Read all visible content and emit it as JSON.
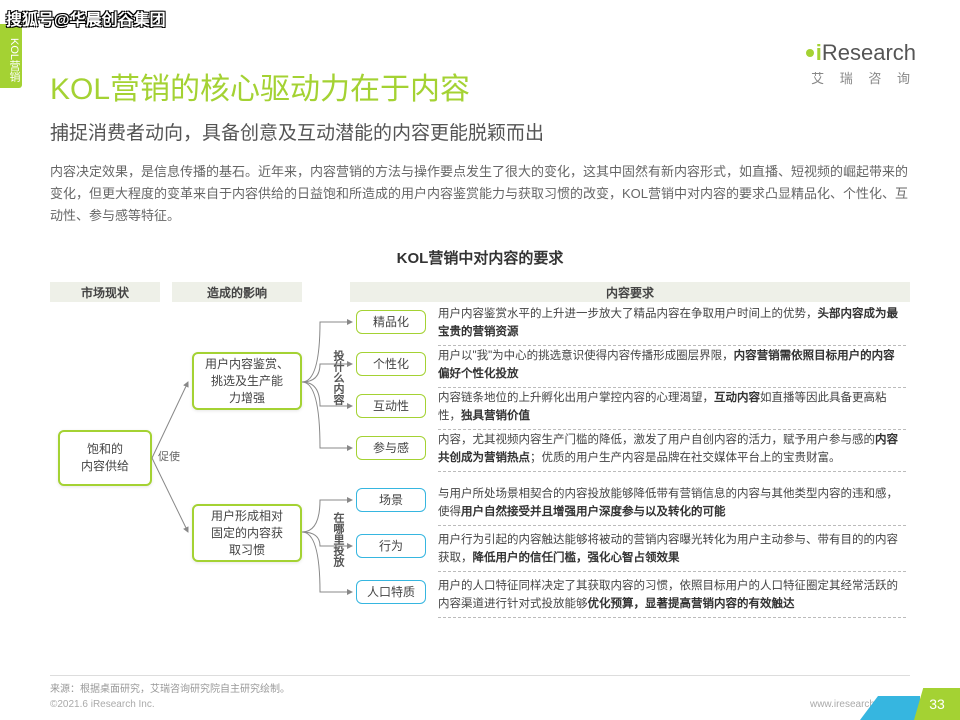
{
  "watermark": "搜狐号@华晨创谷集团",
  "sideTab": "KOL营销",
  "logo": {
    "brand": "Research",
    "sub": "艾 瑞 咨 询"
  },
  "title": "KOL营销的核心驱动力在于内容",
  "subtitle": "捕捉消费者动向，具备创意及互动潜能的内容更能脱颖而出",
  "paragraph": "内容决定效果，是信息传播的基石。近年来，内容营销的方法与操作要点发生了很大的变化，这其中固然有新内容形式，如直播、短视频的崛起带来的变化，但更大程度的变革来自于内容供给的日益饱和所造成的用户内容鉴赏能力与获取习惯的改变，KOL营销中对内容的要求凸显精品化、个性化、互动性、参与感等特征。",
  "sectionTitle": "KOL营销中对内容的要求",
  "headers": {
    "h1": "市场现状",
    "h2": "造成的影响",
    "h3": "内容要求"
  },
  "root": "饱和的\n内容供给",
  "edge1": "促使",
  "mid": {
    "m1": "用户内容鉴赏、\n挑选及生产能\n力增强",
    "m2": "用户形成相对\n固定的内容获\n取习惯"
  },
  "vlabels": {
    "v1": "投什么内容",
    "v2": "在哪里投放"
  },
  "tags": {
    "t1": "精品化",
    "t2": "个性化",
    "t3": "互动性",
    "t4": "参与感",
    "t5": "场景",
    "t6": "行为",
    "t7": "人口特质"
  },
  "desc": {
    "d1": "用户内容鉴赏水平的上升进一步放大了精品内容在争取用户时间上的优势，<b>头部内容成为最宝贵的营销资源</b>",
    "d2": "用户以\"我\"为中心的挑选意识使得内容传播形成圈层界限，<b>内容营销需依照目标用户的内容偏好个性化投放</b>",
    "d3": "内容链条地位的上升孵化出用户掌控内容的心理渴望，<b>互动内容</b>如直播等因此具备更高粘性，<b>独具营销价值</b>",
    "d4": "内容，尤其视频内容生产门槛的降低，激发了用户自创内容的活力，赋予用户参与感的<b>内容共创成为营销热点</b>；优质的用户生产内容是品牌在社交媒体平台上的宝贵财富。",
    "d5": "与用户所处场景相契合的内容投放能够降低带有营销信息的内容与其他类型内容的违和感，使得<b>用户自然接受并且增强用户深度参与以及转化的可能</b>",
    "d6": "用户行为引起的内容触达能够将被动的营销内容曝光转化为用户主动参与、带有目的的内容获取，<b>降低用户的信任门槛，强化心智占领效果</b>",
    "d7": "用户的人口特征同样决定了其获取内容的习惯，依照目标用户的人口特征圈定其经常活跃的内容渠道进行针对式投放能够<b>优化预算，显著提高营销内容的有效触达</b>"
  },
  "source": "来源：根据桌面研究，艾瑞咨询研究院自主研究绘制。",
  "copyright": "©2021.6 iResearch Inc.",
  "url": "www.iresearch.com.cn",
  "page": "33",
  "colors": {
    "green": "#a4d233",
    "cyan": "#36b6e0",
    "gray": "#eef0e8"
  }
}
